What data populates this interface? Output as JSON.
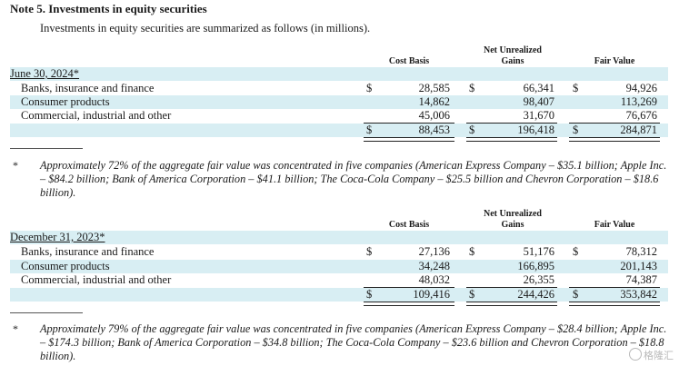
{
  "note_title": "Note 5. Investments in equity securities",
  "intro": "Investments in equity securities are summarized as follows (in millions).",
  "columns": {
    "cost_basis": "Cost Basis",
    "net_unrealized_line1": "Net Unrealized",
    "net_unrealized_line2": "Gains",
    "fair_value": "Fair Value"
  },
  "currency_symbol": "$",
  "tables": [
    {
      "date": "June 30, 2024*",
      "rows": [
        {
          "label": "Banks, insurance and finance",
          "cost": "28,585",
          "gains": "66,341",
          "fair": "94,926"
        },
        {
          "label": "Consumer products",
          "cost": "14,862",
          "gains": "98,407",
          "fair": "113,269"
        },
        {
          "label": "Commercial, industrial and other",
          "cost": "45,006",
          "gains": "31,670",
          "fair": "76,676"
        }
      ],
      "total": {
        "cost": "88,453",
        "gains": "196,418",
        "fair": "284,871"
      },
      "footnote_marker": "*",
      "footnote": "Approximately 72% of the aggregate fair value was concentrated in five companies (American Express Company – $35.1 billion; Apple Inc. – $84.2 billion; Bank of America Corporation – $41.1 billion; The Coca-Cola Company – $25.5 billion and Chevron Corporation – $18.6 billion)."
    },
    {
      "date": "December 31, 2023*",
      "rows": [
        {
          "label": "Banks, insurance and finance",
          "cost": "27,136",
          "gains": "51,176",
          "fair": "78,312"
        },
        {
          "label": "Consumer products",
          "cost": "34,248",
          "gains": "166,895",
          "fair": "201,143"
        },
        {
          "label": "Commercial, industrial and other",
          "cost": "48,032",
          "gains": "26,355",
          "fair": "74,387"
        }
      ],
      "total": {
        "cost": "109,416",
        "gains": "244,426",
        "fair": "353,842"
      },
      "footnote_marker": "*",
      "footnote": "Approximately 79% of the aggregate fair value was concentrated in five companies (American Express Company – $28.4 billion; Apple Inc. – $174.3 billion; Bank of America Corporation – $34.8 billion; The Coca-Cola Company – $23.6 billion and Chevron Corporation – $18.8 billion)."
    }
  ],
  "watermark": "格隆汇"
}
